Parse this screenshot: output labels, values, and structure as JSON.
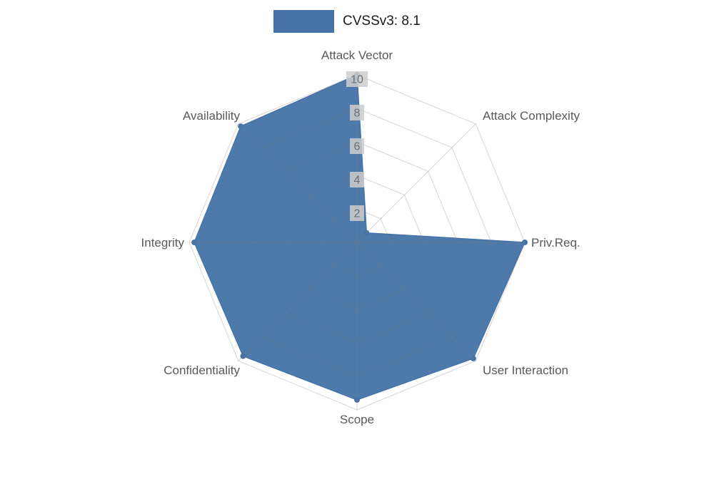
{
  "legend": {
    "label": "CVSSv3: 8.1",
    "color": "#4572a7"
  },
  "chart_data": {
    "type": "radar",
    "title": "CVSSv3: 8.1",
    "categories": [
      "Attack Vector",
      "Attack Complexity",
      "Priv.Req.",
      "User Interaction",
      "Scope",
      "Confidentiality",
      "Integrity",
      "Availability"
    ],
    "series": [
      {
        "name": "CVSSv3: 8.1",
        "values": [
          10,
          0.8,
          10,
          9.8,
          9.4,
          9.6,
          9.7,
          9.8
        ]
      }
    ],
    "ticks": [
      2,
      4,
      6,
      8,
      10
    ],
    "axis_range": [
      0,
      10
    ],
    "grid": true,
    "legend_position": "top",
    "colors": {
      "series_fill": "#4572a7",
      "grid_line": "#808080",
      "axis_label": "#595959",
      "tick_label": "#6e6e6e",
      "tick_bg": "#cccccc"
    }
  }
}
